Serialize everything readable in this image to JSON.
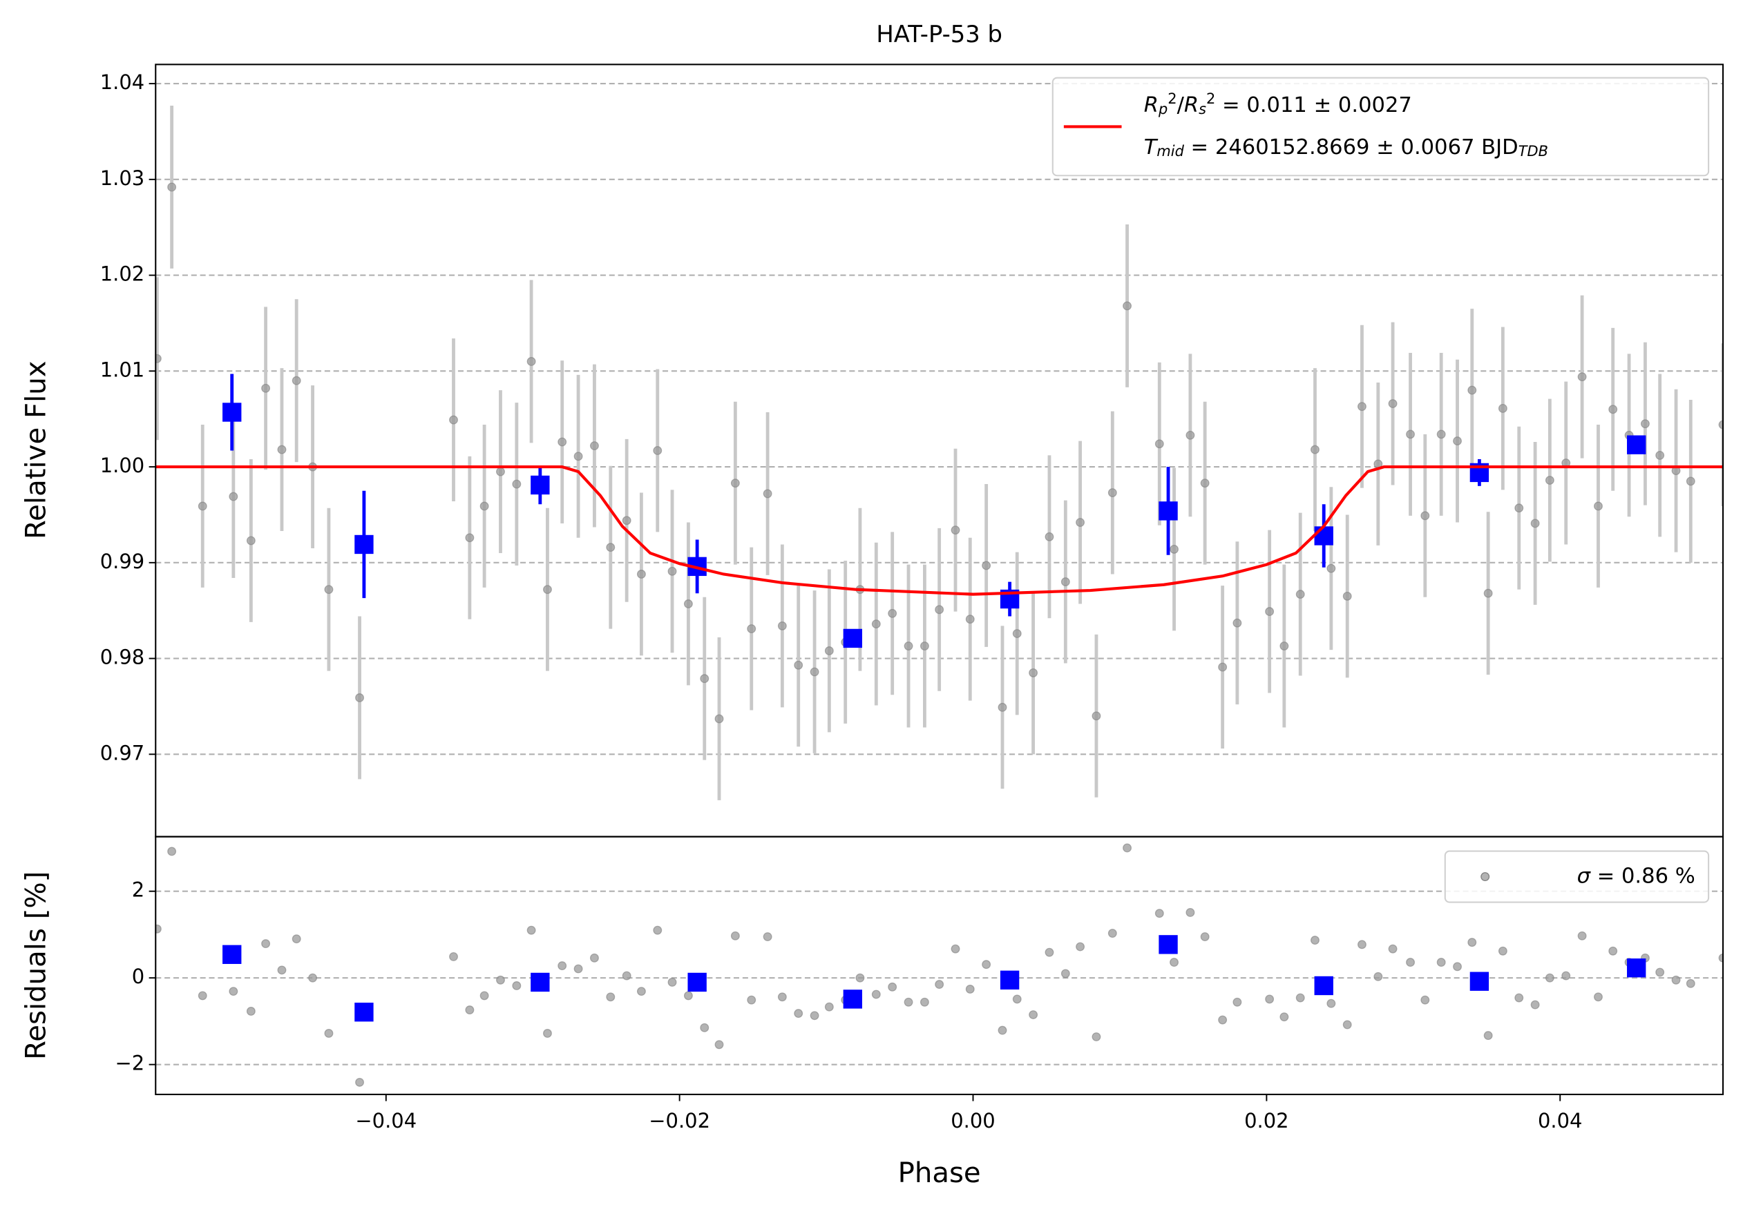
{
  "chart_data": [
    {
      "type": "scatter",
      "title": "HAT-P-53 b",
      "ylabel": "Relative Flux",
      "xlim": [
        -0.0557,
        0.0511
      ],
      "ylim": [
        0.9614,
        1.042
      ],
      "yticks": [
        0.97,
        0.98,
        0.99,
        {
          "value": 1,
          "label": "1.00"
        },
        1.01,
        1.02,
        1.03,
        1.04
      ],
      "grid": true,
      "legend": "upper right",
      "series": [
        {
          "color": "#999999",
          "marker": "o",
          "x": [
            -0.0556,
            -0.0546,
            -0.0525,
            -0.0504,
            -0.0492,
            -0.0482,
            -0.0471,
            -0.0461,
            -0.045,
            -0.0439,
            -0.0418,
            -0.0354,
            -0.0343,
            -0.0333,
            -0.0322,
            -0.0311,
            -0.0301,
            -0.029,
            -0.028,
            -0.0269,
            -0.0258,
            -0.0247,
            -0.0236,
            -0.0226,
            -0.0215,
            -0.0205,
            -0.0194,
            -0.0183,
            -0.0173,
            -0.0162,
            -0.0151,
            -0.014,
            -0.013,
            -0.0119,
            -0.0108,
            -0.0098,
            -0.0087,
            -0.0077,
            -0.0066,
            -0.0055,
            -0.0044,
            -0.0033,
            -0.0023,
            -0.0012,
            -0.0002,
            0.0009,
            0.002,
            0.003,
            0.0041,
            0.0052,
            0.0063,
            0.0073,
            0.0084,
            0.0095,
            0.0105,
            0.0127,
            0.0137,
            0.0148,
            0.0158,
            0.017,
            0.018,
            0.0202,
            0.0212,
            0.0223,
            0.0233,
            0.0244,
            0.0255,
            0.0265,
            0.0276,
            0.0286,
            0.0298,
            0.0308,
            0.0319,
            0.033,
            0.034,
            0.0351,
            0.0361,
            0.0372,
            0.0383,
            0.0393,
            0.0404,
            0.0415,
            0.0426,
            0.0436,
            0.0447,
            0.0458,
            0.0468,
            0.0479,
            0.0489,
            0.0511
          ],
          "values": [
            1.0113,
            1.0292,
            0.9959,
            0.9969,
            0.9923,
            1.0082,
            1.0018,
            1.009,
            1.0,
            0.9872,
            0.9759,
            1.0049,
            0.9926,
            0.9959,
            0.9995,
            0.9982,
            1.011,
            0.9872,
            1.0026,
            1.0011,
            1.0022,
            0.9916,
            0.9944,
            0.9888,
            1.0017,
            0.9891,
            0.9857,
            0.9779,
            0.9737,
            0.9983,
            0.9831,
            0.9972,
            0.9834,
            0.9793,
            0.9786,
            0.9808,
            0.9817,
            0.9872,
            0.9836,
            0.9847,
            0.9813,
            0.9813,
            0.9851,
            0.9934,
            0.9841,
            0.9897,
            0.9749,
            0.9826,
            0.9785,
            0.9927,
            0.988,
            0.9942,
            0.974,
            0.9973,
            1.0168,
            1.0024,
            0.9914,
            1.0033,
            0.9983,
            0.9791,
            0.9837,
            0.9849,
            0.9813,
            0.9867,
            1.0018,
            0.9894,
            0.9865,
            1.0063,
            1.0003,
            1.0066,
            1.0034,
            0.9949,
            1.0034,
            1.0027,
            1.008,
            0.9868,
            1.0061,
            0.9957,
            0.9941,
            0.9986,
            1.0004,
            1.0094,
            0.9959,
            1.006,
            1.0033,
            1.0045,
            1.0012,
            0.9996,
            0.9985,
            1.0044
          ],
          "errors": [
            0.0085,
            0.0085,
            0.0085,
            0.0085,
            0.0085,
            0.0085,
            0.0085,
            0.0085,
            0.0085,
            0.0085,
            0.0085,
            0.0085,
            0.0085,
            0.0085,
            0.0085,
            0.0085,
            0.0085,
            0.0085,
            0.0085,
            0.0085,
            0.0085,
            0.0085,
            0.0085,
            0.0085,
            0.0085,
            0.0085,
            0.0085,
            0.0085,
            0.0085,
            0.0085,
            0.0085,
            0.0085,
            0.0085,
            0.0085,
            0.0085,
            0.0085,
            0.0085,
            0.0085,
            0.0085,
            0.0085,
            0.0085,
            0.0085,
            0.0085,
            0.0085,
            0.0085,
            0.0085,
            0.0085,
            0.0085,
            0.0085,
            0.0085,
            0.0085,
            0.0085,
            0.0085,
            0.0085,
            0.0085,
            0.0085,
            0.0085,
            0.0085,
            0.0085,
            0.0085,
            0.0085,
            0.0085,
            0.0085,
            0.0085,
            0.0085,
            0.0085,
            0.0085,
            0.0085,
            0.0085,
            0.0085,
            0.0085,
            0.0085,
            0.0085,
            0.0085,
            0.0085,
            0.0085,
            0.0085,
            0.0085,
            0.0085,
            0.0085,
            0.0085,
            0.0085,
            0.0085,
            0.0085,
            0.0085,
            0.0085,
            0.0085,
            0.0085,
            0.0085,
            0.0085
          ]
        },
        {
          "color": "#0000ff",
          "marker": "s",
          "x": [
            -0.0505,
            -0.0415,
            -0.0295,
            -0.0188,
            -0.0082,
            0.0025,
            0.0133,
            0.0239,
            0.0345,
            0.0452
          ],
          "values": [
            1.0057,
            0.9919,
            0.9981,
            0.9896,
            0.9821,
            0.9862,
            0.9954,
            0.9928,
            0.9994,
            1.0023
          ],
          "errors": [
            0.004,
            0.0056,
            0.002,
            0.0028,
            0.0008,
            0.0018,
            0.0046,
            0.0033,
            0.0014,
            0.0008
          ]
        },
        {
          "color": "#ff0000",
          "line": true,
          "name_parts": [
            [
              {
                "text": "R",
                "style": "it"
              },
              {
                "text": "p",
                "style": "sub"
              },
              {
                "text": "2",
                "style": "sup"
              },
              {
                "text": "/",
                "style": "rm"
              },
              {
                "text": "R",
                "style": "it"
              },
              {
                "text": "s",
                "style": "sub"
              },
              {
                "text": "2",
                "style": "sup"
              },
              {
                "text": " = 0.011 ± 0.0027",
                "style": "rm"
              }
            ],
            [
              {
                "text": "T",
                "style": "it"
              },
              {
                "text": "mid",
                "style": "sub"
              },
              {
                "text": " = 2460152.8669 ± 0.0067 BJD",
                "style": "rm"
              },
              {
                "text": "TDB",
                "style": "sub"
              }
            ]
          ],
          "x": [
            -0.0557,
            -0.028,
            -0.0269,
            -0.0254,
            -0.0239,
            -0.022,
            -0.02,
            -0.017,
            -0.013,
            -0.008,
            0.0,
            0.008,
            0.013,
            0.017,
            0.02,
            0.022,
            0.0239,
            0.0254,
            0.0269,
            0.028,
            0.0511
          ],
          "values": [
            1.0,
            1.0,
            0.9995,
            0.997,
            0.9938,
            0.991,
            0.9899,
            0.9888,
            0.9879,
            0.9872,
            0.9867,
            0.9871,
            0.9877,
            0.9886,
            0.9898,
            0.991,
            0.9938,
            0.997,
            0.9995,
            1.0,
            1.0
          ]
        }
      ]
    },
    {
      "type": "scatter",
      "ylabel": "Residuals [%]",
      "xlabel": "Phase",
      "xlim": [
        -0.0557,
        0.0511
      ],
      "ylim": [
        -2.69,
        3.26
      ],
      "xticks": [
        {
          "value": -0.04,
          "label": "−0.04"
        },
        {
          "value": -0.02,
          "label": "−0.02"
        },
        {
          "value": 0,
          "label": "0.00"
        },
        0.02,
        0.04
      ],
      "yticks": [
        {
          "value": -2,
          "label": "−2"
        },
        0,
        2
      ],
      "grid": true,
      "legend": "upper right",
      "series": [
        {
          "color": "#999999",
          "marker": "o",
          "name_parts": [
            [
              {
                "text": "σ",
                "style": "it"
              },
              {
                "text": " = 0.86 %",
                "style": "rm"
              }
            ]
          ],
          "x": [
            -0.0556,
            -0.0546,
            -0.0525,
            -0.0504,
            -0.0492,
            -0.0482,
            -0.0471,
            -0.0461,
            -0.045,
            -0.0439,
            -0.0418,
            -0.0354,
            -0.0343,
            -0.0333,
            -0.0322,
            -0.0311,
            -0.0301,
            -0.029,
            -0.028,
            -0.0269,
            -0.0258,
            -0.0247,
            -0.0236,
            -0.0226,
            -0.0215,
            -0.0205,
            -0.0194,
            -0.0183,
            -0.0173,
            -0.0162,
            -0.0151,
            -0.014,
            -0.013,
            -0.0119,
            -0.0108,
            -0.0098,
            -0.0087,
            -0.0077,
            -0.0066,
            -0.0055,
            -0.0044,
            -0.0033,
            -0.0023,
            -0.0012,
            -0.0002,
            0.0009,
            0.002,
            0.003,
            0.0041,
            0.0052,
            0.0063,
            0.0073,
            0.0084,
            0.0095,
            0.0105,
            0.0127,
            0.0137,
            0.0148,
            0.0158,
            0.017,
            0.018,
            0.0202,
            0.0212,
            0.0223,
            0.0233,
            0.0244,
            0.0255,
            0.0265,
            0.0276,
            0.0286,
            0.0298,
            0.0308,
            0.0319,
            0.033,
            0.034,
            0.0351,
            0.0361,
            0.0372,
            0.0383,
            0.0393,
            0.0404,
            0.0415,
            0.0426,
            0.0436,
            0.0447,
            0.0458,
            0.0468,
            0.0479,
            0.0489,
            0.0511
          ],
          "values": [
            1.13,
            2.92,
            -0.41,
            -0.31,
            -0.77,
            0.79,
            0.18,
            0.9,
            0.0,
            -1.28,
            -2.41,
            0.49,
            -0.74,
            -0.41,
            -0.05,
            -0.18,
            1.1,
            -1.28,
            0.28,
            0.21,
            0.46,
            -0.44,
            0.05,
            -0.31,
            1.1,
            -0.1,
            -0.41,
            -1.15,
            -1.54,
            0.97,
            -0.51,
            0.95,
            -0.44,
            -0.82,
            -0.87,
            -0.67,
            -0.51,
            0.0,
            -0.38,
            -0.21,
            -0.56,
            -0.56,
            -0.15,
            0.67,
            -0.26,
            0.31,
            -1.21,
            -0.49,
            -0.85,
            0.59,
            0.1,
            0.72,
            -1.36,
            1.03,
            3.0,
            1.49,
            0.36,
            1.51,
            0.95,
            -0.97,
            -0.56,
            -0.49,
            -0.9,
            -0.46,
            0.87,
            -0.59,
            -1.08,
            0.77,
            0.03,
            0.67,
            0.36,
            -0.51,
            0.36,
            0.26,
            0.82,
            -1.33,
            0.62,
            -0.46,
            -0.62,
            0.0,
            0.05,
            0.97,
            -0.44,
            0.62,
            0.36,
            0.46,
            0.13,
            -0.05,
            -0.13,
            0.46
          ]
        },
        {
          "color": "#0000ff",
          "marker": "s",
          "x": [
            -0.0505,
            -0.0415,
            -0.0295,
            -0.0188,
            -0.0082,
            0.0025,
            0.0133,
            0.0239,
            0.0345,
            0.0452
          ],
          "values": [
            0.54,
            -0.79,
            -0.1,
            -0.1,
            -0.49,
            -0.05,
            0.77,
            -0.18,
            -0.08,
            0.23
          ]
        }
      ]
    }
  ]
}
